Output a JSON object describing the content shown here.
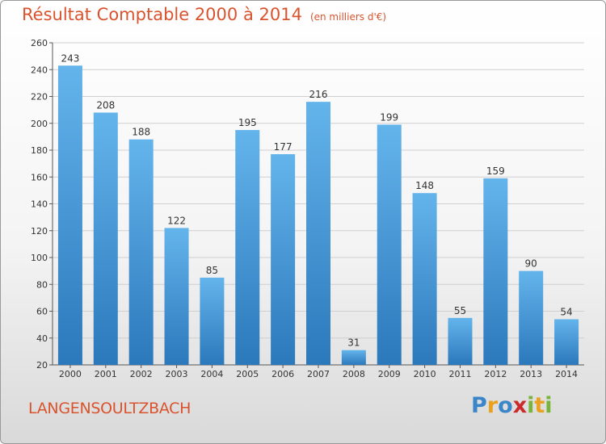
{
  "header": {
    "title": "Résultat Comptable 2000 à 2014",
    "subtitle": "(en milliers d'€)"
  },
  "footer": {
    "city": "LANGENSOULTZBACH",
    "brand": [
      "P",
      "r",
      "o",
      "x",
      "i",
      "t",
      "i"
    ]
  },
  "colors": {
    "title": "#d9542e",
    "bar_top": "#64b4ec",
    "bar_bottom": "#2b78bb",
    "brand": [
      "#3a86c8",
      "#e9a11e",
      "#3a86c8",
      "#cc2a2a",
      "#79b43a",
      "#e9a11e",
      "#79b43a"
    ]
  },
  "chart_data": {
    "type": "bar",
    "title": "Résultat Comptable 2000 à 2014",
    "xlabel": "",
    "ylabel": "",
    "ylim": [
      20,
      260
    ],
    "yticks": [
      20,
      40,
      60,
      80,
      100,
      120,
      140,
      160,
      180,
      200,
      220,
      240,
      260
    ],
    "grid": true,
    "categories": [
      "2000",
      "2001",
      "2002",
      "2003",
      "2004",
      "2005",
      "2006",
      "2007",
      "2008",
      "2009",
      "2010",
      "2011",
      "2012",
      "2013",
      "2014"
    ],
    "values": [
      243,
      208,
      188,
      122,
      85,
      195,
      177,
      216,
      31,
      199,
      148,
      55,
      159,
      90,
      54
    ]
  }
}
